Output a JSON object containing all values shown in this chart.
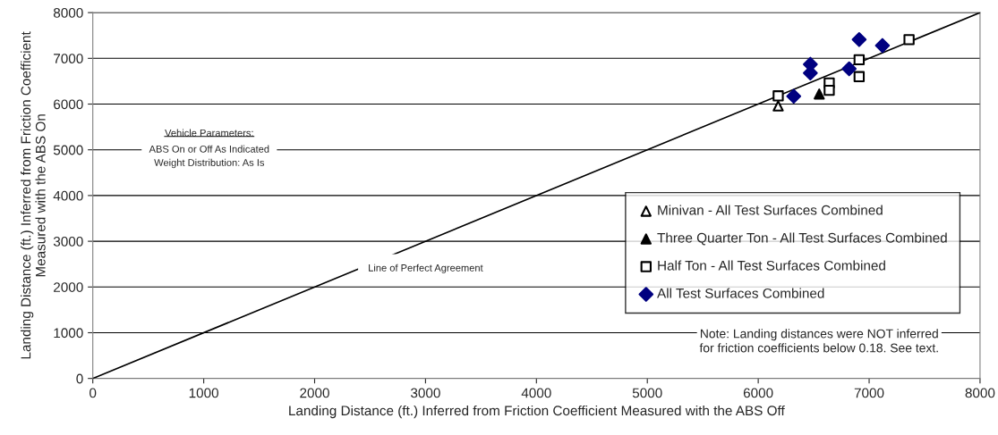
{
  "chart_data": {
    "type": "scatter",
    "xlabel": "Landing Distance (ft.) Inferred from Friction Coefficient Measured with the ABS Off",
    "ylabel": "Landing Distance (ft.) Inferred from Friction Coefficient\nMeasured with the ABS On",
    "xlim": [
      0,
      8000
    ],
    "ylim": [
      0,
      8000
    ],
    "xticks": [
      0,
      1000,
      2000,
      3000,
      4000,
      5000,
      6000,
      7000,
      8000
    ],
    "yticks": [
      0,
      1000,
      2000,
      3000,
      4000,
      5000,
      6000,
      7000,
      8000
    ],
    "grid": "y",
    "legend": "bottom right",
    "series": [
      {
        "name": "Minivan - All Test Surfaces Combined",
        "marker": "triangle",
        "color": "#ffffff",
        "x": [
          6180
        ],
        "values": [
          5960
        ]
      },
      {
        "name": "Three Quarter Ton - All Test Surfaces Combined",
        "marker": "triangle",
        "color": "#000000",
        "x": [
          6550
        ],
        "values": [
          6220
        ]
      },
      {
        "name": "Half Ton - All Test Surfaces Combined",
        "marker": "square",
        "color": "#ffffff",
        "x": [
          6180,
          6640,
          6640,
          6910,
          6910,
          7360
        ],
        "values": [
          6180,
          6460,
          6300,
          6970,
          6600,
          7410
        ]
      },
      {
        "name": "All Test Surfaces Combined",
        "marker": "diamond",
        "color": "#000080",
        "x": [
          6320,
          6470,
          6470,
          6820,
          6910,
          7120
        ],
        "values": [
          6170,
          6870,
          6680,
          6770,
          7410,
          7280
        ]
      },
      {
        "type": "line",
        "color": "#000000",
        "x": [
          0,
          8000
        ],
        "values": [
          0,
          8000
        ]
      }
    ],
    "annotations": [
      "Line of Perfect Agreement",
      "Vehicle Parameters:",
      "ABS On or Off As Indicated\nWeight Distribution: As Is",
      "Note: Landing distances were NOT inferred\nfor friction coefficients below 0.18. See text."
    ]
  }
}
